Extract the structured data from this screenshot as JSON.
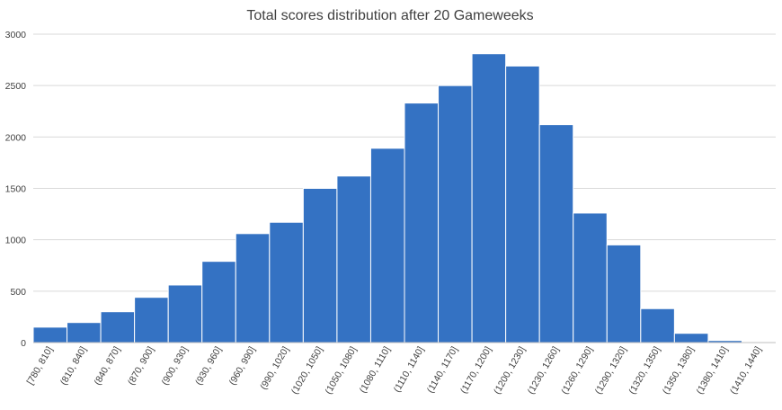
{
  "chart_data": {
    "type": "bar",
    "title": "Total scores distribution after 20 Gameweeks",
    "xlabel": "",
    "ylabel": "",
    "ylim": [
      0,
      3000
    ],
    "yticks": [
      0,
      500,
      1000,
      1500,
      2000,
      2500,
      3000
    ],
    "grid": true,
    "legend": "none",
    "bar_color": "#3472c3",
    "categories": [
      "[780, 810]",
      "(810, 840]",
      "(840, 870]",
      "(870, 900]",
      "(900, 930]",
      "(930, 960]",
      "(960, 990]",
      "(990, 1020]",
      "(1020, 1050]",
      "(1050, 1080]",
      "(1080, 1110]",
      "(1110, 1140]",
      "(1140, 1170]",
      "(1170, 1200]",
      "(1200, 1230]",
      "(1230, 1260]",
      "(1260, 1290]",
      "(1290, 1320]",
      "(1320, 1350]",
      "(1350, 1380]",
      "(1380, 1410]",
      "(1410, 1440]"
    ],
    "values": [
      150,
      195,
      300,
      440,
      560,
      790,
      1060,
      1170,
      1500,
      1620,
      1890,
      2330,
      2500,
      2810,
      2690,
      2120,
      1260,
      950,
      330,
      90,
      20,
      5
    ]
  }
}
